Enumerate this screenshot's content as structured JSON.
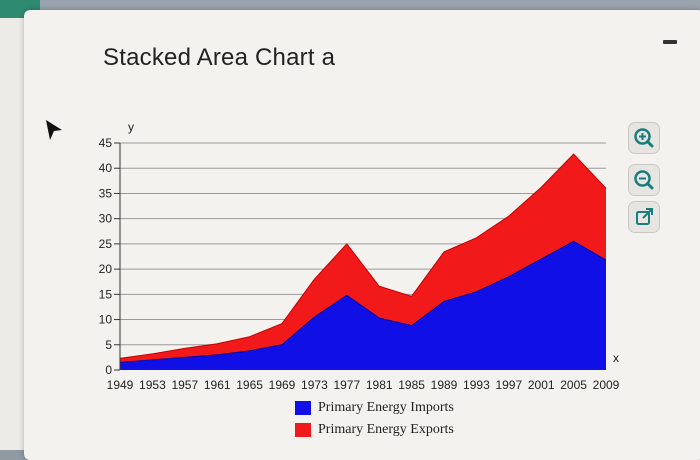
{
  "chart_title": "Stacked Area Chart a",
  "icons": {
    "zoom_in": "zoom-in-icon",
    "zoom_out": "zoom-out-icon",
    "popout": "external-link-icon",
    "cursor": "mouse-pointer-icon",
    "minimize": "minimize-icon"
  },
  "colors": {
    "imports": "#1010e6",
    "exports": "#f11919",
    "tool_accent": "#1a7d7d"
  },
  "chart_data": {
    "type": "area",
    "stacked": true,
    "title": "Stacked Area Chart a",
    "xlabel": "x",
    "ylabel": "y",
    "ylim": [
      0,
      45
    ],
    "yticks": [
      0,
      5,
      10,
      15,
      20,
      25,
      30,
      35,
      40,
      45
    ],
    "x": [
      1949,
      1953,
      1957,
      1961,
      1965,
      1969,
      1973,
      1977,
      1981,
      1985,
      1989,
      1993,
      1997,
      2001,
      2005,
      2009
    ],
    "xticks": [
      "1949",
      "1953",
      "1957",
      "1961",
      "1965",
      "1969",
      "1973",
      "1977",
      "1981",
      "1985",
      "1989",
      "1993",
      "1997",
      "2001",
      "2005",
      "2009"
    ],
    "series": [
      {
        "name": "Primary Energy Imports",
        "values": [
          1.5,
          2,
          2.5,
          3,
          3.8,
          5,
          10.5,
          14.8,
          10.3,
          8.8,
          13.6,
          15.5,
          18.5,
          22,
          25.5,
          21.8
        ]
      },
      {
        "name": "Primary Energy Exports",
        "values": [
          0.8,
          1.2,
          1.8,
          2.2,
          2.8,
          4.2,
          7.5,
          10.2,
          6.3,
          5.8,
          9.8,
          10.7,
          12.0,
          14.2,
          17.3,
          14.2
        ]
      }
    ],
    "grid": true,
    "legend_position": "bottom"
  }
}
